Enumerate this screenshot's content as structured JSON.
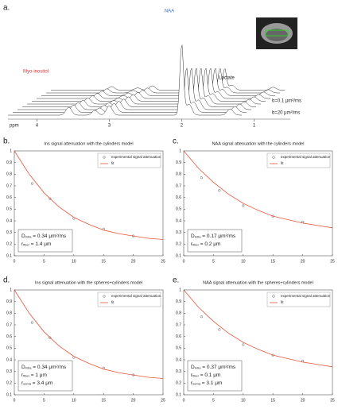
{
  "chart_data": [
    {
      "type": "spectrum",
      "label": "a.",
      "xlabel": "ppm",
      "xlim": [
        4.4,
        0.5
      ],
      "xticks": [
        4,
        3,
        2,
        1
      ],
      "annotations": [
        "NAA",
        "Myo-inositol",
        "Lactate",
        "b=0.1 μm²/ms",
        "b=20 μm²/ms"
      ]
    },
    {
      "type": "scatter",
      "label": "b.",
      "title": "Ins signal attenuation with the cylinders model",
      "xlim": [
        0,
        25
      ],
      "xticks": [
        0,
        5,
        10,
        15,
        20,
        25
      ],
      "ylim": [
        0.1,
        1.0
      ],
      "yticks": [
        0.1,
        0.2,
        0.3,
        0.4,
        0.5,
        0.6,
        0.7,
        0.8,
        0.9,
        1
      ],
      "legend": "upper right",
      "series": [
        {
          "name": "experimental signal attenuation",
          "color": "#555555",
          "x": [
            3,
            6,
            10,
            15,
            20
          ],
          "values": [
            0.72,
            0.59,
            0.42,
            0.33,
            0.27
          ]
        },
        {
          "name": "fit",
          "color": "#e8553a",
          "x": [
            0,
            2.5,
            5,
            7.5,
            10,
            12.5,
            15,
            17.5,
            20,
            22.5,
            25
          ],
          "values": [
            1,
            0.8,
            0.64,
            0.52,
            0.43,
            0.37,
            0.32,
            0.29,
            0.27,
            0.25,
            0.24
          ]
        }
      ],
      "fit_params": [
        {
          "symbol": "D",
          "sub": "intra",
          "text": " = 0.34 μm²/ms"
        },
        {
          "symbol": "r",
          "sub": "fiber",
          "text": " = 1.4 μm"
        }
      ]
    },
    {
      "type": "scatter",
      "label": "c.",
      "title": "NAA signal attenuation with the cylinders model",
      "xlim": [
        0,
        25
      ],
      "xticks": [
        0,
        5,
        10,
        15,
        20,
        25
      ],
      "ylim": [
        0.1,
        1.0
      ],
      "yticks": [
        0.1,
        0.2,
        0.3,
        0.4,
        0.5,
        0.6,
        0.7,
        0.8,
        0.9,
        1
      ],
      "legend": "upper right",
      "series": [
        {
          "name": "experimental signal attenuation",
          "color": "#555555",
          "x": [
            3,
            6,
            10,
            15,
            20
          ],
          "values": [
            0.77,
            0.66,
            0.53,
            0.44,
            0.39
          ]
        },
        {
          "name": "fit",
          "color": "#e8553a",
          "x": [
            0,
            2.5,
            5,
            7.5,
            10,
            12.5,
            15,
            17.5,
            20,
            22.5,
            25
          ],
          "values": [
            1,
            0.85,
            0.73,
            0.63,
            0.55,
            0.49,
            0.44,
            0.41,
            0.38,
            0.36,
            0.34
          ]
        }
      ],
      "fit_params": [
        {
          "symbol": "D",
          "sub": "intra",
          "text": " = 0.17 μm²/ms"
        },
        {
          "symbol": "r",
          "sub": "fiber",
          "text": " = 0.2 μm"
        }
      ]
    },
    {
      "type": "scatter",
      "label": "d.",
      "title": "Ins signal attenuation with the spheres+cylinders model",
      "xlim": [
        0,
        25
      ],
      "xticks": [
        0,
        5,
        10,
        15,
        20,
        25
      ],
      "ylim": [
        0.1,
        1.0
      ],
      "yticks": [
        0.1,
        0.2,
        0.3,
        0.4,
        0.5,
        0.6,
        0.7,
        0.8,
        0.9,
        1
      ],
      "legend": "upper right",
      "series": [
        {
          "name": "experimental signal attenuation",
          "color": "#555555",
          "x": [
            3,
            6,
            10,
            15,
            20
          ],
          "values": [
            0.72,
            0.59,
            0.42,
            0.33,
            0.27
          ]
        },
        {
          "name": "fit",
          "color": "#e8553a",
          "x": [
            0,
            2.5,
            5,
            7.5,
            10,
            12.5,
            15,
            17.5,
            20,
            22.5,
            25
          ],
          "values": [
            1,
            0.8,
            0.64,
            0.52,
            0.43,
            0.37,
            0.32,
            0.29,
            0.27,
            0.25,
            0.24
          ]
        }
      ],
      "fit_params": [
        {
          "symbol": "D",
          "sub": "intra",
          "text": " = 0.34 μm²/ms"
        },
        {
          "symbol": "r",
          "sub": "fiber",
          "text": " = 1 μm"
        },
        {
          "symbol": "r",
          "sub": "soma",
          "text": " = 3.4 μm"
        }
      ]
    },
    {
      "type": "scatter",
      "label": "e.",
      "title": "NAA signal attenuation with the spheres+cylinders model",
      "xlim": [
        0,
        25
      ],
      "xticks": [
        0,
        5,
        10,
        15,
        20,
        25
      ],
      "ylim": [
        0.1,
        1.0
      ],
      "yticks": [
        0.1,
        0.2,
        0.3,
        0.4,
        0.5,
        0.6,
        0.7,
        0.8,
        0.9,
        1
      ],
      "legend": "upper right",
      "series": [
        {
          "name": "experimental signal attenuation",
          "color": "#555555",
          "x": [
            3,
            6,
            10,
            15,
            20
          ],
          "values": [
            0.77,
            0.66,
            0.53,
            0.44,
            0.39
          ]
        },
        {
          "name": "fit",
          "color": "#e8553a",
          "x": [
            0,
            2.5,
            5,
            7.5,
            10,
            12.5,
            15,
            17.5,
            20,
            22.5,
            25
          ],
          "values": [
            1,
            0.85,
            0.73,
            0.63,
            0.55,
            0.49,
            0.44,
            0.41,
            0.38,
            0.36,
            0.34
          ]
        }
      ],
      "fit_params": [
        {
          "symbol": "D",
          "sub": "intra",
          "text": " = 0.37 μm²/ms"
        },
        {
          "symbol": "r",
          "sub": "fiber",
          "text": " = 0.1 μm"
        },
        {
          "symbol": "r",
          "sub": "soma",
          "text": " = 3.1 μm"
        }
      ]
    }
  ]
}
